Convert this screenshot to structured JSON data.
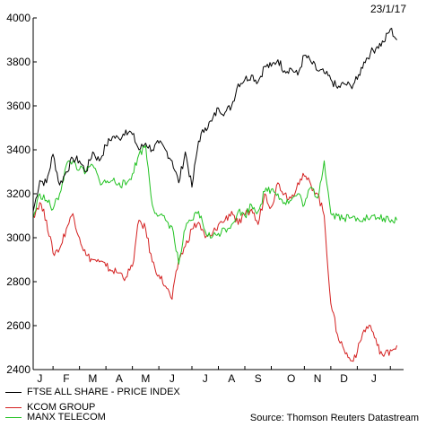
{
  "date_stamp": "23/1/17",
  "source": "Source: Thomson Reuters Datastream",
  "colors": {
    "ftse": "#000000",
    "kcom": "#d42020",
    "manx": "#22c222",
    "axis": "#000000"
  },
  "chart_data": {
    "type": "line",
    "title": "",
    "xlabel": "",
    "ylabel": "",
    "ylim": [
      2400,
      4000
    ],
    "yticks": [
      2400,
      2600,
      2800,
      3000,
      3200,
      3400,
      3600,
      3800,
      4000
    ],
    "grid": false,
    "legend_position": "bottom-left",
    "x_range": [
      0,
      56
    ],
    "x_labels": [
      "J",
      "F",
      "M",
      "A",
      "M",
      "J",
      "J",
      "A",
      "S",
      "O",
      "N",
      "D",
      "J"
    ],
    "x_label_positions": [
      1,
      5,
      9,
      13,
      17,
      21,
      26,
      30,
      34,
      39,
      43,
      47,
      51.5
    ],
    "x": [
      0,
      1,
      2,
      3,
      4,
      5,
      6,
      7,
      8,
      9,
      10,
      11,
      12,
      13,
      14,
      15,
      16,
      17,
      18,
      19,
      20,
      21,
      22,
      23,
      24,
      25,
      26,
      27,
      28,
      29,
      30,
      31,
      32,
      33,
      34,
      35,
      36,
      37,
      38,
      39,
      40,
      41,
      42,
      43,
      44,
      45,
      46,
      47,
      48,
      49,
      50,
      51,
      52,
      53,
      54,
      55
    ],
    "series": [
      {
        "name": "FTSE ALL SHARE - PRICE INDEX",
        "values": [
          3120,
          3260,
          3250,
          3380,
          3240,
          3300,
          3360,
          3350,
          3300,
          3390,
          3350,
          3420,
          3460,
          3450,
          3490,
          3470,
          3400,
          3430,
          3400,
          3430,
          3400,
          3350,
          3250,
          3390,
          3230,
          3440,
          3500,
          3530,
          3590,
          3570,
          3600,
          3700,
          3720,
          3740,
          3710,
          3780,
          3780,
          3810,
          3760,
          3770,
          3740,
          3830,
          3800,
          3760,
          3750,
          3720,
          3680,
          3700,
          3690,
          3720,
          3800,
          3840,
          3870,
          3890,
          3950,
          3900
        ]
      },
      {
        "name": "KCOM GROUP",
        "values": [
          3100,
          3160,
          3080,
          2930,
          2950,
          3040,
          3110,
          3000,
          2920,
          2900,
          2890,
          2870,
          2850,
          2840,
          2820,
          2870,
          3080,
          3040,
          2890,
          2830,
          2780,
          2720,
          2900,
          2960,
          3040,
          3070,
          3000,
          3010,
          3060,
          3080,
          3120,
          3060,
          3100,
          3130,
          3060,
          3200,
          3140,
          3250,
          3200,
          3180,
          3250,
          3280,
          3240,
          3200,
          3100,
          2700,
          2560,
          2490,
          2440,
          2480,
          2580,
          2600,
          2510,
          2460,
          2490,
          2510
        ]
      },
      {
        "name": "MANX TELECOM",
        "values": [
          3090,
          3200,
          3170,
          3130,
          3200,
          3330,
          3350,
          3310,
          3300,
          3330,
          3260,
          3250,
          3260,
          3250,
          3240,
          3290,
          3380,
          3420,
          3150,
          3100,
          3080,
          3050,
          2880,
          3040,
          3080,
          3120,
          3030,
          3000,
          3020,
          3040,
          3060,
          3120,
          3100,
          3150,
          3120,
          3210,
          3220,
          3200,
          3160,
          3170,
          3200,
          3150,
          3230,
          3180,
          3350,
          3110,
          3100,
          3090,
          3090,
          3090,
          3090,
          3090,
          3090,
          3090,
          3070,
          3080
        ]
      }
    ]
  }
}
